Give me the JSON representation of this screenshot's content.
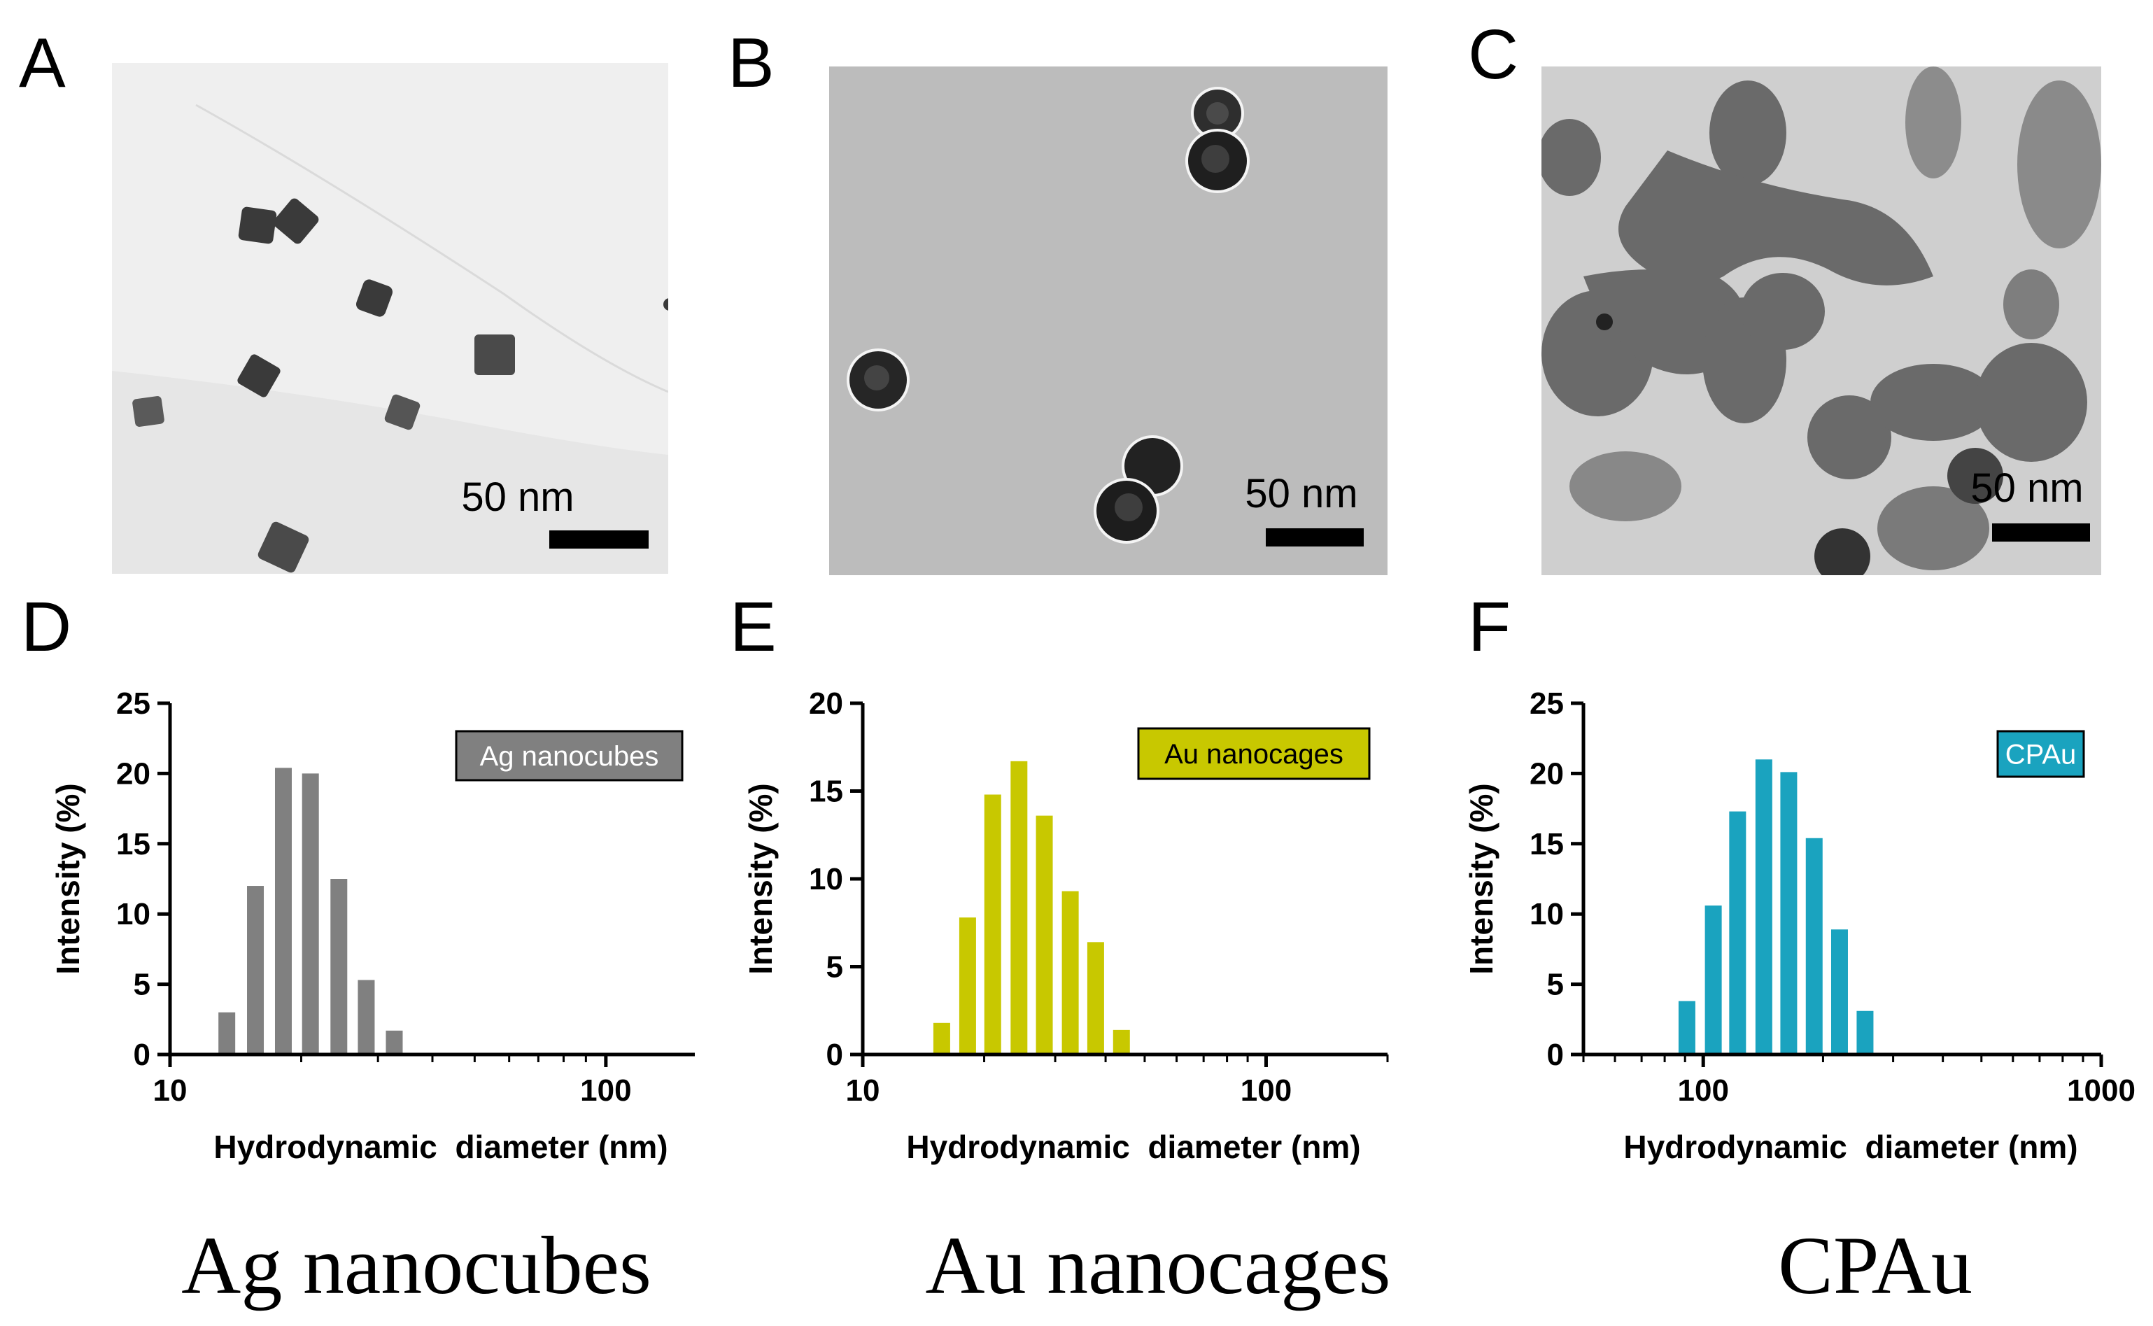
{
  "panels": {
    "A": {
      "letter": "A",
      "scale_bar": "50 nm",
      "bg": "#e6e6e6"
    },
    "B": {
      "letter": "B",
      "scale_bar": "50 nm",
      "bg": "#b9b9b9"
    },
    "C": {
      "letter": "C",
      "scale_bar": "50 nm",
      "bg": "#cfcfcf"
    },
    "D": {
      "letter": "D"
    },
    "E": {
      "letter": "E"
    },
    "F": {
      "letter": "F"
    }
  },
  "captions": [
    "Ag nanocubes",
    "Au nanocages",
    "CPAu"
  ],
  "chart_data": [
    {
      "type": "bar",
      "panel": "D",
      "xscale": "log",
      "xlim": [
        10,
        160
      ],
      "ylim": [
        0,
        25
      ],
      "xticks": [
        10,
        100
      ],
      "yticks": [
        0,
        5,
        10,
        15,
        20,
        25
      ],
      "xlabel": "Hydrodynamic  diameter (nm)",
      "ylabel": "Intensity (%)",
      "series": [
        {
          "name": "Ag nanocubes",
          "color": "#808080",
          "x": [
            13.5,
            15.7,
            18.2,
            21.0,
            24.4,
            28.2,
            32.7
          ],
          "values": [
            3.0,
            12.0,
            20.4,
            20.0,
            12.5,
            5.3,
            1.7
          ]
        }
      ]
    },
    {
      "type": "bar",
      "panel": "E",
      "xscale": "log",
      "xlim": [
        10,
        200
      ],
      "ylim": [
        0,
        20
      ],
      "xticks": [
        10,
        100
      ],
      "yticks": [
        0,
        5,
        10,
        15,
        20
      ],
      "xlabel": "Hydrodynamic  diameter (nm)",
      "ylabel": "Intensity (%)",
      "series": [
        {
          "name": "Au nanocages",
          "color": "#c8c800",
          "x": [
            15.7,
            18.2,
            21.0,
            24.4,
            28.2,
            32.7,
            37.8,
            43.8
          ],
          "values": [
            1.8,
            7.8,
            14.8,
            16.7,
            13.6,
            9.3,
            6.4,
            1.4
          ]
        }
      ]
    },
    {
      "type": "bar",
      "panel": "F",
      "xscale": "log",
      "xlim": [
        50,
        1000
      ],
      "ylim": [
        0,
        25
      ],
      "xticks": [
        100,
        1000
      ],
      "yticks": [
        0,
        5,
        10,
        15,
        20,
        25
      ],
      "xlabel": "Hydrodynamic  diameter (nm)",
      "ylabel": "Intensity (%)",
      "series": [
        {
          "name": "CPAu",
          "color": "#1aa3bf",
          "x": [
            91,
            106,
            122,
            142,
            164,
            190,
            220,
            255
          ],
          "values": [
            3.8,
            10.6,
            17.3,
            21.0,
            20.1,
            15.4,
            8.9,
            3.1
          ]
        }
      ]
    }
  ]
}
